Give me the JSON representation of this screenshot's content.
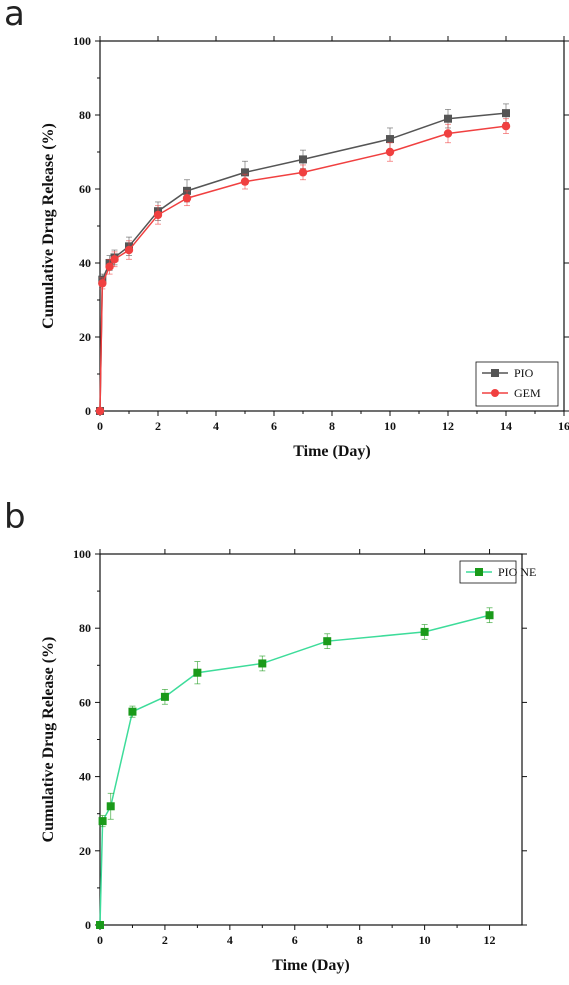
{
  "panels": {
    "a": "a",
    "b": "b"
  },
  "chart_data": [
    {
      "type": "line",
      "xlabel": "Time (Day)",
      "ylabel": "Cumulative Drug Release (%)",
      "xlim": [
        0,
        16
      ],
      "ylim": [
        0,
        100
      ],
      "xticks": [
        0,
        2,
        4,
        6,
        8,
        10,
        12,
        14,
        16
      ],
      "yticks": [
        0,
        20,
        40,
        60,
        80,
        100
      ],
      "grid": false,
      "legend_position": "bottom-right",
      "series": [
        {
          "name": "PIO",
          "color": "#555555",
          "marker": "square",
          "x": [
            0,
            0.08,
            0.33,
            0.5,
            1,
            2,
            3,
            5,
            7,
            10,
            12,
            14
          ],
          "y": [
            0,
            35.5,
            40,
            41.5,
            44.5,
            54,
            59.5,
            64.5,
            68,
            73.5,
            79,
            80.5
          ],
          "err": [
            0,
            1.5,
            2,
            2,
            2.5,
            2.5,
            3,
            3,
            2.5,
            3,
            2.5,
            2.5
          ]
        },
        {
          "name": "GEM",
          "color": "#f04040",
          "marker": "circle",
          "x": [
            0,
            0.08,
            0.33,
            0.5,
            1,
            2,
            3,
            5,
            7,
            10,
            12,
            14
          ],
          "y": [
            0,
            34.5,
            39,
            41,
            43.5,
            53,
            57.5,
            62,
            64.5,
            70,
            75,
            77
          ],
          "err": [
            0,
            1.5,
            2,
            2,
            2.5,
            2.5,
            2,
            2,
            2,
            2.5,
            2.5,
            2
          ]
        }
      ]
    },
    {
      "type": "line",
      "xlabel": "Time (Day)",
      "ylabel": "Cumulative Drug Release (%)",
      "xlim": [
        0,
        13
      ],
      "ylim": [
        0,
        100
      ],
      "xticks": [
        0,
        2,
        4,
        6,
        8,
        10,
        12
      ],
      "yticks": [
        0,
        20,
        40,
        60,
        80,
        100
      ],
      "grid": false,
      "legend_position": "top-right",
      "series": [
        {
          "name": "PIO NE",
          "color": "#1a9a1a",
          "line_color": "#3ddc9a",
          "marker": "square",
          "x": [
            0,
            0.08,
            0.33,
            1,
            2,
            3,
            5,
            7,
            10,
            12
          ],
          "y": [
            0,
            28,
            32,
            57.5,
            61.5,
            68,
            70.5,
            76.5,
            79,
            83.5
          ],
          "err": [
            0,
            1.5,
            3.5,
            1.5,
            2,
            3,
            2,
            2,
            2,
            2
          ]
        }
      ]
    }
  ]
}
